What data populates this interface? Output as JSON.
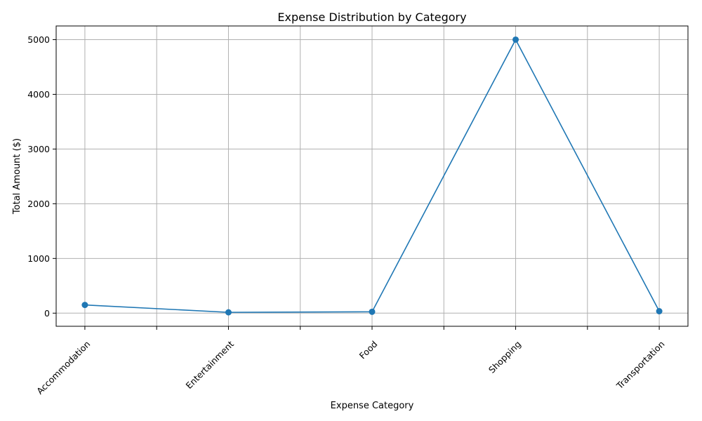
{
  "chart_data": {
    "type": "line",
    "title": "Expense Distribution by Category",
    "xlabel": "Expense Category",
    "ylabel": "Total Amount ($)",
    "categories": [
      "Accommodation",
      "Entertainment",
      "Food",
      "Shopping",
      "Transportation"
    ],
    "series": [
      {
        "values": [
          150,
          15,
          25,
          5000,
          35
        ]
      }
    ],
    "ylim": [
      -240,
      5250
    ],
    "yticks": [
      0,
      1000,
      2000,
      3000,
      4000,
      5000
    ],
    "grid": true,
    "line_color": "#1f77b4",
    "marker": "circle"
  }
}
